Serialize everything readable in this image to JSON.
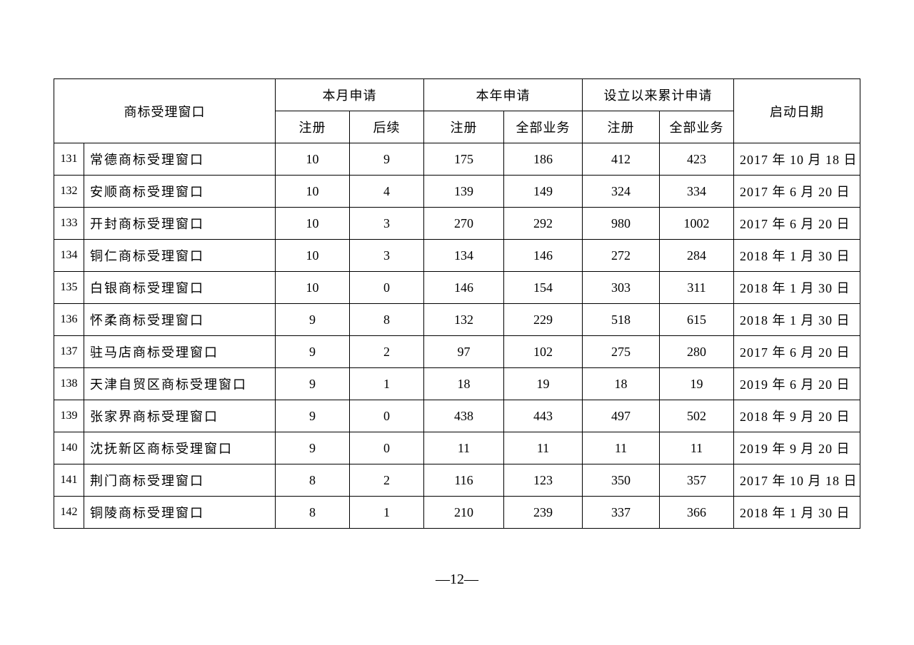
{
  "table": {
    "headers": {
      "window": "商标受理窗口",
      "month_group": "本月申请",
      "year_group": "本年申请",
      "total_group": "设立以来累计申请",
      "start_date": "启动日期",
      "sub_register": "注册",
      "sub_followup": "后续",
      "sub_all": "全部业务"
    },
    "rows": [
      {
        "idx": "131",
        "name": "常德商标受理窗口",
        "m_reg": "10",
        "m_fol": "9",
        "y_reg": "175",
        "y_all": "186",
        "t_reg": "412",
        "t_all": "423",
        "date": "2017 年 10 月 18 日"
      },
      {
        "idx": "132",
        "name": "安顺商标受理窗口",
        "m_reg": "10",
        "m_fol": "4",
        "y_reg": "139",
        "y_all": "149",
        "t_reg": "324",
        "t_all": "334",
        "date": "2017 年 6 月 20 日"
      },
      {
        "idx": "133",
        "name": "开封商标受理窗口",
        "m_reg": "10",
        "m_fol": "3",
        "y_reg": "270",
        "y_all": "292",
        "t_reg": "980",
        "t_all": "1002",
        "date": "2017 年 6 月 20 日"
      },
      {
        "idx": "134",
        "name": "铜仁商标受理窗口",
        "m_reg": "10",
        "m_fol": "3",
        "y_reg": "134",
        "y_all": "146",
        "t_reg": "272",
        "t_all": "284",
        "date": "2018 年 1 月 30 日"
      },
      {
        "idx": "135",
        "name": "白银商标受理窗口",
        "m_reg": "10",
        "m_fol": "0",
        "y_reg": "146",
        "y_all": "154",
        "t_reg": "303",
        "t_all": "311",
        "date": "2018 年 1 月 30 日"
      },
      {
        "idx": "136",
        "name": "怀柔商标受理窗口",
        "m_reg": "9",
        "m_fol": "8",
        "y_reg": "132",
        "y_all": "229",
        "t_reg": "518",
        "t_all": "615",
        "date": "2018 年 1 月 30 日"
      },
      {
        "idx": "137",
        "name": "驻马店商标受理窗口",
        "m_reg": "9",
        "m_fol": "2",
        "y_reg": "97",
        "y_all": "102",
        "t_reg": "275",
        "t_all": "280",
        "date": "2017 年 6 月 20 日"
      },
      {
        "idx": "138",
        "name": "天津自贸区商标受理窗口",
        "m_reg": "9",
        "m_fol": "1",
        "y_reg": "18",
        "y_all": "19",
        "t_reg": "18",
        "t_all": "19",
        "date": "2019 年 6 月 20 日"
      },
      {
        "idx": "139",
        "name": "张家界商标受理窗口",
        "m_reg": "9",
        "m_fol": "0",
        "y_reg": "438",
        "y_all": "443",
        "t_reg": "497",
        "t_all": "502",
        "date": "2018 年 9 月 20 日"
      },
      {
        "idx": "140",
        "name": "沈抚新区商标受理窗口",
        "m_reg": "9",
        "m_fol": "0",
        "y_reg": "11",
        "y_all": "11",
        "t_reg": "11",
        "t_all": "11",
        "date": "2019 年 9 月 20 日"
      },
      {
        "idx": "141",
        "name": "荆门商标受理窗口",
        "m_reg": "8",
        "m_fol": "2",
        "y_reg": "116",
        "y_all": "123",
        "t_reg": "350",
        "t_all": "357",
        "date": "2017 年 10 月 18 日"
      },
      {
        "idx": "142",
        "name": "铜陵商标受理窗口",
        "m_reg": "8",
        "m_fol": "1",
        "y_reg": "210",
        "y_all": "239",
        "t_reg": "337",
        "t_all": "366",
        "date": "2018 年 1 月 30 日"
      }
    ]
  },
  "page_number": "—12—"
}
